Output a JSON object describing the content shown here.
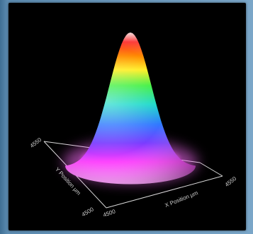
{
  "chart_data": {
    "type": "surface",
    "title": "",
    "xlabel": "X Position µm",
    "ylabel": "Y Position µm",
    "x_ticks": [
      "4500",
      "4550"
    ],
    "y_ticks": [
      "4550",
      "4500"
    ],
    "x_range": [
      4500,
      4550
    ],
    "y_range": [
      4500,
      4550
    ],
    "shape": "gaussian",
    "peak_center": [
      4525,
      4525
    ],
    "colormap": [
      "#ffffff",
      "#ff2020",
      "#ffa000",
      "#ffff20",
      "#40ff40",
      "#10d8d0",
      "#2060ff",
      "#8030ff",
      "#ff40ff",
      "#ff90ff"
    ],
    "grid": false
  }
}
